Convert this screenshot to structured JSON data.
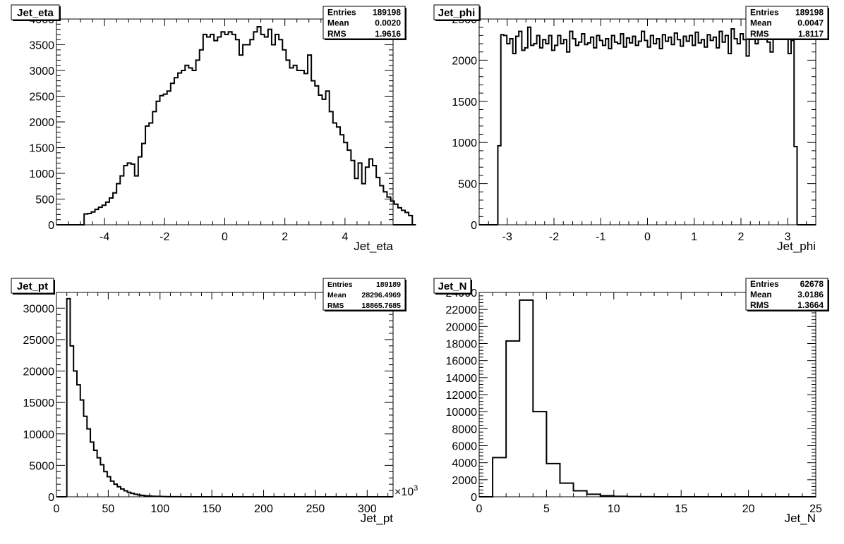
{
  "chart_data": [
    {
      "type": "histogram",
      "title": "Jet_eta",
      "xlabel": "Jet_eta",
      "ylabel": "",
      "xlim": [
        -5.6,
        5.6
      ],
      "ylim": [
        0,
        4000
      ],
      "xticks": [
        "-4",
        "-2",
        "0",
        "2",
        "4"
      ],
      "yticks": [
        "0",
        "500",
        "1000",
        "1500",
        "2000",
        "2500",
        "3000",
        "3500",
        "4000"
      ],
      "stats": [
        {
          "label": "Entries",
          "value": "189198"
        },
        {
          "label": "Mean",
          "value": "0.0020"
        },
        {
          "label": "RMS",
          "value": "1.9616"
        }
      ],
      "bin_edges_start": -4.8,
      "bin_width": 0.12,
      "values": [
        0,
        210,
        220,
        250,
        300,
        340,
        380,
        440,
        520,
        620,
        800,
        950,
        1150,
        1200,
        1180,
        950,
        1320,
        1580,
        1920,
        1980,
        2200,
        2400,
        2510,
        2540,
        2600,
        2750,
        2860,
        2950,
        3000,
        3100,
        3050,
        3000,
        3200,
        3400,
        3700,
        3650,
        3700,
        3580,
        3650,
        3750,
        3700,
        3750,
        3700,
        3600,
        3300,
        3500,
        3500,
        3600,
        3750,
        3850,
        3700,
        3650,
        3800,
        3500,
        3700,
        3600,
        3400,
        3200,
        3050,
        3100,
        3000,
        3000,
        2940,
        3300,
        2800,
        2700,
        2520,
        2440,
        2600,
        2200,
        1980,
        1900,
        1750,
        1600,
        1450,
        1250,
        900,
        1200,
        800,
        1120,
        1280,
        1150,
        920,
        760,
        640,
        540,
        460,
        400,
        330,
        280,
        240,
        180,
        0
      ]
    },
    {
      "type": "histogram",
      "title": "Jet_phi",
      "xlabel": "Jet_phi",
      "ylabel": "",
      "xlim": [
        -3.6,
        3.6
      ],
      "ylim": [
        0,
        2500
      ],
      "xticks": [
        "-3",
        "-2",
        "-1",
        "0",
        "1",
        "2",
        "3"
      ],
      "yticks": [
        "0",
        "500",
        "1000",
        "1500",
        "2000",
        "2500"
      ],
      "stats": [
        {
          "label": "Entries",
          "value": "189198"
        },
        {
          "label": "Mean",
          "value": "0.0047"
        },
        {
          "label": "RMS",
          "value": "1.8117"
        }
      ],
      "bin_edges_start": -3.2,
      "bin_width": 0.064,
      "values": [
        960,
        2310,
        2300,
        2200,
        2260,
        2080,
        2290,
        2350,
        2120,
        2150,
        2400,
        2180,
        2200,
        2300,
        2150,
        2250,
        2200,
        2300,
        2120,
        2180,
        2300,
        2200,
        2250,
        2100,
        2350,
        2260,
        2180,
        2220,
        2320,
        2190,
        2210,
        2280,
        2150,
        2300,
        2240,
        2180,
        2260,
        2140,
        2300,
        2220,
        2200,
        2320,
        2160,
        2270,
        2210,
        2290,
        2180,
        2230,
        2350,
        2240,
        2160,
        2300,
        2200,
        2260,
        2140,
        2310,
        2230,
        2280,
        2190,
        2330,
        2250,
        2170,
        2290,
        2230,
        2300,
        2180,
        2340,
        2210,
        2250,
        2160,
        2310,
        2240,
        2280,
        2150,
        2350,
        2220,
        2300,
        2080,
        2380,
        2260,
        2200,
        2320,
        2250,
        2050,
        2330,
        2280,
        2200,
        2360,
        2270,
        2310,
        2220,
        2100,
        2350,
        2300,
        2280,
        2320,
        2260,
        2080,
        2240,
        950
      ]
    },
    {
      "type": "histogram",
      "title": "Jet_pt",
      "xlabel": "Jet_pt",
      "ylabel": "",
      "x_multiplier": "×10",
      "x_multiplier_exp": "3",
      "xlim": [
        0,
        325
      ],
      "ylim": [
        0,
        32500
      ],
      "xticks": [
        "0",
        "50",
        "100",
        "150",
        "200",
        "250",
        "300"
      ],
      "yticks": [
        "0",
        "5000",
        "10000",
        "15000",
        "20000",
        "25000",
        "30000"
      ],
      "stats": [
        {
          "label": "Entries",
          "value": "189189"
        },
        {
          "label": "Mean",
          "value": "28296.4969"
        },
        {
          "label": "RMS",
          "value": "18865.7685"
        }
      ],
      "bin_edges_start": 10,
      "bin_width": 3.25,
      "values": [
        31500,
        24000,
        20000,
        17800,
        15400,
        12800,
        10800,
        8700,
        7400,
        6200,
        5100,
        4000,
        3200,
        2500,
        2000,
        1600,
        1250,
        950,
        720,
        540,
        400,
        300,
        220,
        160,
        120,
        90,
        65,
        50,
        40,
        30,
        20,
        15,
        10,
        8,
        6,
        4,
        3,
        2,
        1,
        1
      ]
    },
    {
      "type": "histogram",
      "title": "Jet_N",
      "xlabel": "Jet_N",
      "ylabel": "",
      "xlim": [
        0,
        25
      ],
      "ylim": [
        0,
        24000
      ],
      "xticks": [
        "0",
        "5",
        "10",
        "15",
        "20",
        "25"
      ],
      "yticks": [
        "0",
        "2000",
        "4000",
        "6000",
        "8000",
        "10000",
        "12000",
        "14000",
        "16000",
        "18000",
        "20000",
        "22000",
        "24000"
      ],
      "stats": [
        {
          "label": "Entries",
          "value": "62678"
        },
        {
          "label": "Mean",
          "value": "3.0186"
        },
        {
          "label": "RMS",
          "value": "1.3664"
        }
      ],
      "bin_edges_start": 0,
      "bin_width": 1,
      "values": [
        0,
        4600,
        18300,
        23100,
        10000,
        3900,
        1600,
        700,
        300,
        120,
        50,
        20,
        10,
        5,
        2,
        1,
        0,
        0,
        0,
        0,
        0,
        0,
        0,
        0,
        0
      ]
    }
  ]
}
